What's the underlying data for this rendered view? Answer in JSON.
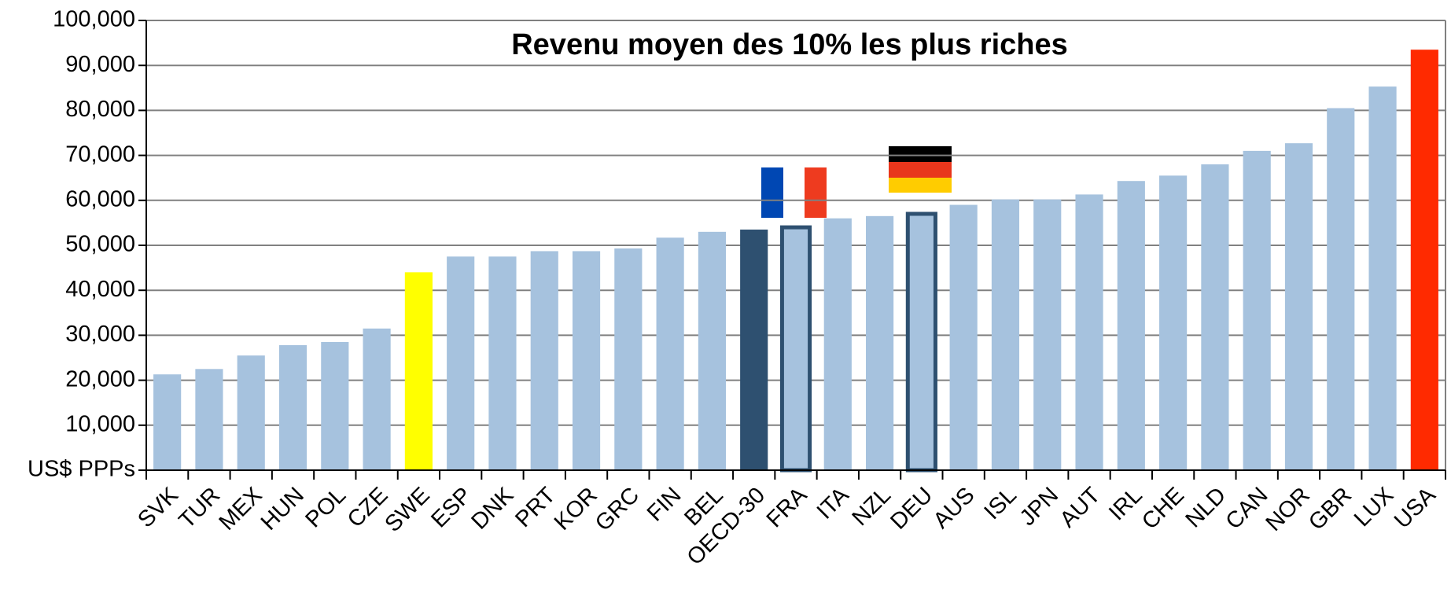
{
  "chart_data": {
    "type": "bar",
    "title": "Revenu moyen  des 10% les plus riches",
    "categories": [
      "SVK",
      "TUR",
      "MEX",
      "HUN",
      "POL",
      "CZE",
      "SWE",
      "ESP",
      "DNK",
      "PRT",
      "KOR",
      "GRC",
      "FIN",
      "BEL",
      "OECD-30",
      "FRA",
      "ITA",
      "NZL",
      "DEU",
      "AUS",
      "ISL",
      "JPN",
      "AUT",
      "IRL",
      "CHE",
      "NLD",
      "CAN",
      "NOR",
      "GBR",
      "LUX",
      "USA"
    ],
    "values": [
      21300,
      22500,
      25500,
      27800,
      28500,
      31500,
      44000,
      47500,
      47500,
      48700,
      48700,
      49300,
      51700,
      53000,
      53500,
      54000,
      56000,
      56500,
      57000,
      59000,
      60200,
      60200,
      61300,
      64300,
      65500,
      68000,
      71000,
      72700,
      80500,
      85300,
      93500
    ],
    "colors": [
      "#a6c2de",
      "#a6c2de",
      "#a6c2de",
      "#a6c2de",
      "#a6c2de",
      "#a6c2de",
      "#ffff00",
      "#a6c2de",
      "#a6c2de",
      "#a6c2de",
      "#a6c2de",
      "#a6c2de",
      "#a6c2de",
      "#a6c2de",
      "#2e5070",
      "#a6c2de",
      "#a6c2de",
      "#a6c2de",
      "#a6c2de",
      "#a6c2de",
      "#a6c2de",
      "#a6c2de",
      "#a6c2de",
      "#a6c2de",
      "#a6c2de",
      "#a6c2de",
      "#a6c2de",
      "#a6c2de",
      "#a6c2de",
      "#a6c2de",
      "#ff2a00"
    ],
    "edgecolors": [
      null,
      null,
      null,
      null,
      null,
      null,
      null,
      null,
      null,
      null,
      null,
      null,
      null,
      null,
      null,
      "#2e5070",
      null,
      null,
      "#2e5070",
      null,
      null,
      null,
      null,
      null,
      null,
      null,
      null,
      null,
      null,
      null,
      null
    ],
    "ylim": [
      0,
      100000
    ],
    "yticks": [
      {
        "value": 0,
        "label": "US$ PPPs"
      },
      {
        "value": 10000,
        "label": "10,000"
      },
      {
        "value": 20000,
        "label": "20,000"
      },
      {
        "value": 30000,
        "label": "30,000"
      },
      {
        "value": 40000,
        "label": "40,000"
      },
      {
        "value": 50000,
        "label": "50,000"
      },
      {
        "value": 60000,
        "label": "60,000"
      },
      {
        "value": 70000,
        "label": "70,000"
      },
      {
        "value": 80000,
        "label": "80,000"
      },
      {
        "value": 90000,
        "label": "90,000"
      },
      {
        "value": 100000,
        "label": "100,000"
      }
    ],
    "grid": true
  }
}
